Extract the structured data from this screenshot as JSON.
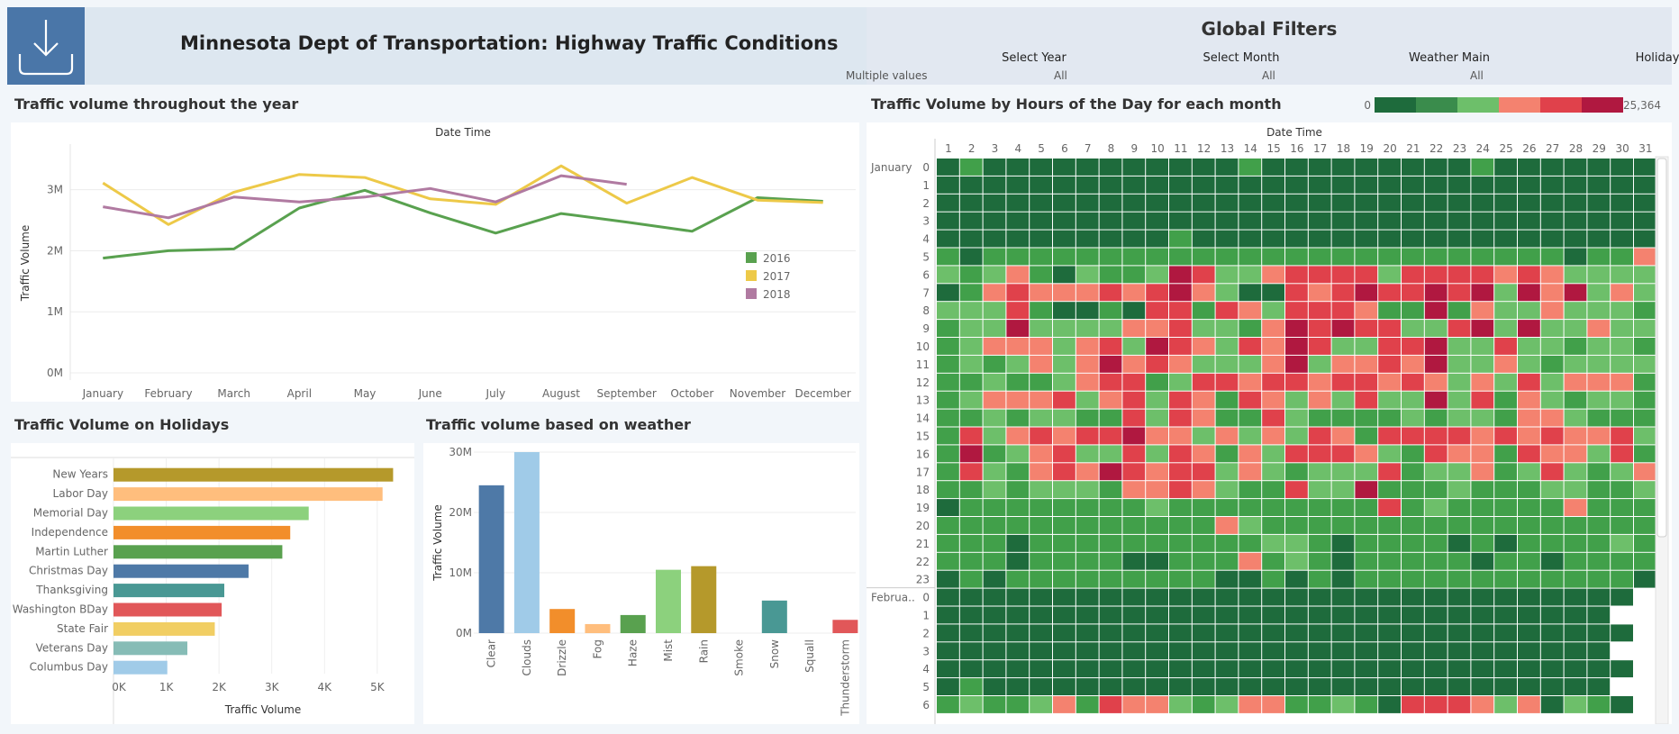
{
  "header": {
    "title": "Minnesota Dept of Transportation: Highway Traffic Conditions",
    "download_icon": "download-icon"
  },
  "filters": {
    "title": "Global Filters",
    "items": [
      {
        "label": "Select Year",
        "value": "Multiple values"
      },
      {
        "label": "Select Month",
        "value": "All"
      },
      {
        "label": "Weather Main",
        "value": "All"
      },
      {
        "label": "Holiday",
        "value": "All"
      }
    ]
  },
  "sections": {
    "line_title": "Traffic volume throughout the year",
    "holiday_title": "Traffic Volume on Holidays",
    "weather_title": "Traffic volume based on weather",
    "heatmap_title": "Traffic Volume by Hours of the Day for each month"
  },
  "chart_data": [
    {
      "type": "line",
      "title": "Date Time",
      "xlabel": "",
      "ylabel": "Traffic Volume",
      "categories": [
        "January",
        "February",
        "March",
        "April",
        "May",
        "June",
        "July",
        "August",
        "September",
        "October",
        "November",
        "December"
      ],
      "yticks": [
        "0M",
        "1M",
        "2M",
        "3M"
      ],
      "ylim": [
        0,
        3600000
      ],
      "legend_position": "right",
      "grid": true,
      "series": [
        {
          "name": "2016",
          "color": "#59a14f",
          "values": [
            1880000,
            2000000,
            2030000,
            2700000,
            2990000,
            2620000,
            2290000,
            2610000,
            2470000,
            2320000,
            2870000,
            2810000
          ]
        },
        {
          "name": "2017",
          "color": "#edc948",
          "values": [
            3110000,
            2430000,
            2960000,
            3250000,
            3200000,
            2850000,
            2760000,
            3390000,
            2780000,
            3200000,
            2830000,
            2790000
          ]
        },
        {
          "name": "2018",
          "color": "#b07aa1",
          "values": [
            2720000,
            2540000,
            2880000,
            2800000,
            2880000,
            3020000,
            2800000,
            3230000,
            3090000,
            null,
            null,
            null
          ]
        }
      ]
    },
    {
      "type": "bar",
      "orientation": "horizontal",
      "title": "",
      "xlabel": "Traffic Volume",
      "ylabel": "",
      "xticks": [
        "0K",
        "1K",
        "2K",
        "3K",
        "4K",
        "5K"
      ],
      "xlim": [
        0,
        5600
      ],
      "grid": true,
      "categories": [
        "New Years",
        "Labor Day",
        "Memorial Day",
        "Independence",
        "Martin Luther",
        "Christmas Day",
        "Thanksgiving",
        "Washington BDay",
        "State Fair",
        "Veterans Day",
        "Columbus Day"
      ],
      "values": [
        5300,
        5100,
        3700,
        3350,
        3200,
        2560,
        2100,
        2050,
        1920,
        1400,
        1020
      ],
      "colors": [
        "#b5992b",
        "#ffbe7d",
        "#8cd17d",
        "#f28e2b",
        "#59a14f",
        "#4e79a7",
        "#499894",
        "#e15759",
        "#f1ce63",
        "#86bcb6",
        "#a0cbe8"
      ]
    },
    {
      "type": "bar",
      "title": "",
      "xlabel": "",
      "ylabel": "Traffic Volume",
      "yticks": [
        "0M",
        "10M",
        "20M",
        "30M"
      ],
      "ylim": [
        0,
        30000000
      ],
      "grid": true,
      "categories": [
        "Clear",
        "Clouds",
        "Drizzle",
        "Fog",
        "Haze",
        "Mist",
        "Rain",
        "Smoke",
        "Snow",
        "Squall",
        "Thunderstorm"
      ],
      "values": [
        24500000,
        30000000,
        4000000,
        1500000,
        3000000,
        10500000,
        11100000,
        0,
        5400000,
        0,
        2200000
      ],
      "colors": [
        "#4e79a7",
        "#a0cbe8",
        "#f28e2b",
        "#ffbe7d",
        "#59a14f",
        "#8cd17d",
        "#b5992b",
        "#499894",
        "#499894",
        "#86bcb6",
        "#e15759"
      ]
    },
    {
      "type": "heatmap",
      "title": "Date Time",
      "xlabel": "",
      "ylabel": "",
      "x": [
        1,
        2,
        3,
        4,
        5,
        6,
        7,
        8,
        9,
        10,
        11,
        12,
        13,
        14,
        15,
        16,
        17,
        18,
        19,
        20,
        21,
        22,
        23,
        24,
        25,
        26,
        27,
        28,
        29,
        30,
        31
      ],
      "months": [
        "January",
        "Februa.."
      ],
      "hours": [
        0,
        1,
        2,
        3,
        4,
        5,
        6,
        7,
        8,
        9,
        10,
        11,
        12,
        13,
        14,
        15,
        16,
        17,
        18,
        19,
        20,
        21,
        22,
        23
      ],
      "color_legend": {
        "min_label": "0",
        "max_label": "25,364",
        "colors": [
          "#1e6b3c",
          "#3a8c4c",
          "#6dbf6a",
          "#f4826f",
          "#e0414b",
          "#b01840"
        ]
      },
      "grid_codes": {
        "January": [
          "1211111111111211111111121111111",
          "1111111111111111111111111111111",
          "1111111111111111111111111111111",
          "1111111111111111111111111111111",
          "1111111111211111111111111111111",
          "2122222222222222222222222221224",
          "3234213223653345555355554543333",
          "1245444545643115456556563646343",
          "3335211215525435554226243343332",
          "2336333344533246565533563633433",
          "2344434536543546533556335332332",
          "2323434645433346344546334323333",
          "2232234552355455455454343534442",
          "2344453453542543435336352432332",
          "2232332253542253222232332443222",
          "2534545564434343542555545454453",
          "2623453353542435554325442544352",
          "2532454654553432333523342353234",
          "2232333244543225336222322233223",
          "1222222223222222222523222224222",
          "2222222222224322222222222222222",
          "2221222222222233212222121222232",
          "2221222211222423212222212212222",
          "1212222222221121212222222222221"
        ],
        "February": [
          "1111111111111111111111111111170",
          "1111111111111111111111111111100",
          "1111111111111111111111111111170",
          "1111111111111111111111111111100",
          "1111111111111111111111111111170",
          "1211111111111111111111111111100",
          "2322342544323442232155543413270"
        ]
      }
    }
  ]
}
